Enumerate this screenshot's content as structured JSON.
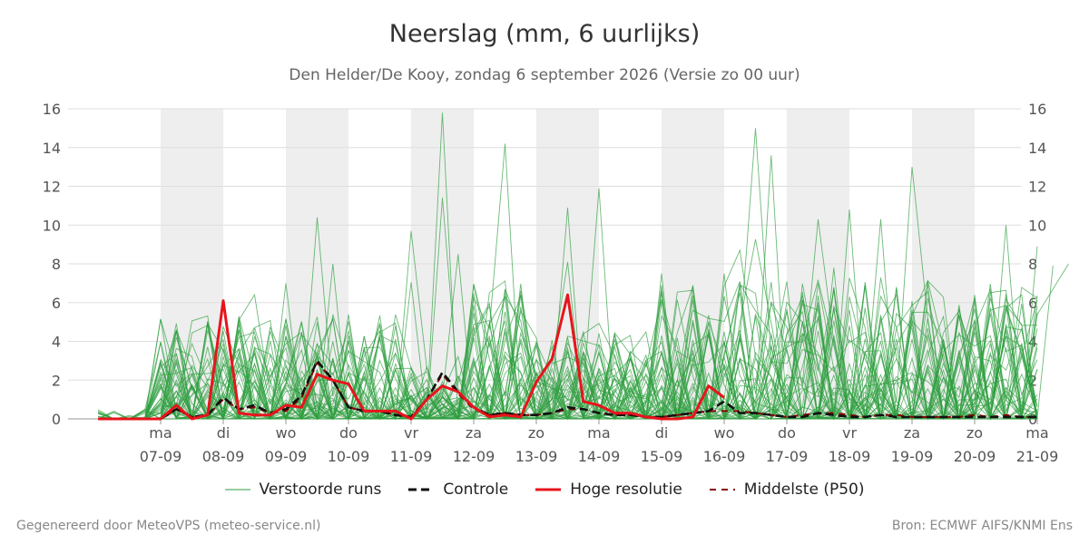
{
  "title": "Neerslag (mm, 6 uurlijks)",
  "subtitle": "Den Helder/De Kooy, zondag  6 september 2026 (Versie zo 00 uur)",
  "footer": {
    "left": "Gegenereerd door MeteoVPS (meteo-service.nl)",
    "right": "Bron: ECMWF AIFS/KNMI Ens"
  },
  "colors": {
    "ensemble": "#2e9e3e",
    "control": "#111111",
    "hires": "#e8141c",
    "median": "#8b0000",
    "weekend_band": "#eeeeee",
    "grid": "#dddddd"
  },
  "legend": [
    {
      "key": "ensemble",
      "label": "Verstoorde runs",
      "style": "thin-solid"
    },
    {
      "key": "control",
      "label": "Controle",
      "style": "dashed"
    },
    {
      "key": "hires",
      "label": "Hoge resolutie",
      "style": "thick-solid"
    },
    {
      "key": "median",
      "label": "Middelste (P50)",
      "style": "dashed"
    }
  ],
  "chart_data": {
    "type": "line",
    "x_unit": "date",
    "ylim": [
      0,
      16
    ],
    "yticks": [
      0,
      2,
      4,
      6,
      8,
      10,
      12,
      14,
      16
    ],
    "grid": true,
    "legend_position": "bottom",
    "x_ticks": [
      {
        "day": "ma",
        "date": "07-09"
      },
      {
        "day": "di",
        "date": "08-09"
      },
      {
        "day": "wo",
        "date": "09-09"
      },
      {
        "day": "do",
        "date": "10-09"
      },
      {
        "day": "vr",
        "date": "11-09"
      },
      {
        "day": "za",
        "date": "12-09"
      },
      {
        "day": "zo",
        "date": "13-09"
      },
      {
        "day": "ma",
        "date": "14-09"
      },
      {
        "day": "di",
        "date": "15-09"
      },
      {
        "day": "wo",
        "date": "16-09"
      },
      {
        "day": "do",
        "date": "17-09"
      },
      {
        "day": "vr",
        "date": "18-09"
      },
      {
        "day": "za",
        "date": "19-09"
      },
      {
        "day": "zo",
        "date": "20-09"
      },
      {
        "day": "ma",
        "date": "21-09"
      }
    ],
    "shaded_days": [
      "07-09",
      "09-09",
      "11-09",
      "13-09",
      "15-09",
      "17-09",
      "19-09"
    ],
    "hires": {
      "name": "Hoge resolutie",
      "points": [
        [
          "06-09 00:00",
          0.0
        ],
        [
          "06-09 06:00",
          0.0
        ],
        [
          "06-09 12:00",
          0.0
        ],
        [
          "06-09 18:00",
          0.0
        ],
        [
          "07-09 00:00",
          0.0
        ],
        [
          "07-09 06:00",
          0.7
        ],
        [
          "07-09 12:00",
          0.0
        ],
        [
          "07-09 18:00",
          0.2
        ],
        [
          "08-09 00:00",
          6.1
        ],
        [
          "08-09 06:00",
          0.3
        ],
        [
          "08-09 12:00",
          0.2
        ],
        [
          "08-09 18:00",
          0.2
        ],
        [
          "09-09 00:00",
          0.7
        ],
        [
          "09-09 06:00",
          0.6
        ],
        [
          "09-09 12:00",
          2.3
        ],
        [
          "09-09 18:00",
          2.0
        ],
        [
          "10-09 00:00",
          1.8
        ],
        [
          "10-09 06:00",
          0.4
        ],
        [
          "10-09 12:00",
          0.4
        ],
        [
          "10-09 18:00",
          0.4
        ],
        [
          "11-09 00:00",
          0.0
        ],
        [
          "11-09 06:00",
          1.0
        ],
        [
          "11-09 12:00",
          1.7
        ],
        [
          "11-09 18:00",
          1.4
        ],
        [
          "12-09 00:00",
          0.6
        ],
        [
          "12-09 06:00",
          0.1
        ],
        [
          "12-09 12:00",
          0.2
        ],
        [
          "12-09 18:00",
          0.1
        ],
        [
          "13-09 00:00",
          1.9
        ],
        [
          "13-09 06:00",
          3.1
        ],
        [
          "13-09 12:00",
          6.4
        ],
        [
          "13-09 18:00",
          0.9
        ],
        [
          "14-09 00:00",
          0.7
        ],
        [
          "14-09 06:00",
          0.3
        ],
        [
          "14-09 12:00",
          0.3
        ],
        [
          "14-09 18:00",
          0.1
        ],
        [
          "15-09 00:00",
          0.0
        ],
        [
          "15-09 06:00",
          0.0
        ],
        [
          "15-09 12:00",
          0.1
        ],
        [
          "15-09 18:00",
          1.7
        ],
        [
          "16-09 00:00",
          1.1
        ]
      ]
    },
    "control": {
      "name": "Controle",
      "points": [
        [
          "06-09 00:00",
          0.0
        ],
        [
          "06-09 06:00",
          0.0
        ],
        [
          "06-09 12:00",
          0.0
        ],
        [
          "06-09 18:00",
          0.0
        ],
        [
          "07-09 00:00",
          0.0
        ],
        [
          "07-09 06:00",
          0.5
        ],
        [
          "07-09 12:00",
          0.1
        ],
        [
          "07-09 18:00",
          0.2
        ],
        [
          "08-09 00:00",
          1.1
        ],
        [
          "08-09 06:00",
          0.5
        ],
        [
          "08-09 12:00",
          0.7
        ],
        [
          "08-09 18:00",
          0.3
        ],
        [
          "09-09 00:00",
          0.5
        ],
        [
          "09-09 06:00",
          1.2
        ],
        [
          "09-09 12:00",
          3.0
        ],
        [
          "09-09 18:00",
          2.0
        ],
        [
          "10-09 00:00",
          0.6
        ],
        [
          "10-09 06:00",
          0.4
        ],
        [
          "10-09 12:00",
          0.4
        ],
        [
          "10-09 18:00",
          0.2
        ],
        [
          "11-09 00:00",
          0.1
        ],
        [
          "11-09 06:00",
          1.0
        ],
        [
          "11-09 12:00",
          2.4
        ],
        [
          "11-09 18:00",
          1.4
        ],
        [
          "12-09 00:00",
          0.6
        ],
        [
          "12-09 06:00",
          0.2
        ],
        [
          "12-09 12:00",
          0.3
        ],
        [
          "12-09 18:00",
          0.2
        ],
        [
          "13-09 00:00",
          0.2
        ],
        [
          "13-09 06:00",
          0.3
        ],
        [
          "13-09 12:00",
          0.6
        ],
        [
          "13-09 18:00",
          0.5
        ],
        [
          "14-09 00:00",
          0.3
        ],
        [
          "14-09 06:00",
          0.2
        ],
        [
          "14-09 12:00",
          0.2
        ],
        [
          "14-09 18:00",
          0.1
        ],
        [
          "15-09 00:00",
          0.1
        ],
        [
          "15-09 06:00",
          0.2
        ],
        [
          "15-09 12:00",
          0.3
        ],
        [
          "15-09 18:00",
          0.4
        ],
        [
          "16-09 00:00",
          0.9
        ],
        [
          "16-09 06:00",
          0.3
        ],
        [
          "16-09 12:00",
          0.3
        ],
        [
          "16-09 18:00",
          0.2
        ],
        [
          "17-09 00:00",
          0.1
        ],
        [
          "17-09 06:00",
          0.1
        ],
        [
          "17-09 12:00",
          0.3
        ],
        [
          "17-09 18:00",
          0.2
        ],
        [
          "18-09 00:00",
          0.1
        ],
        [
          "18-09 06:00",
          0.1
        ],
        [
          "18-09 12:00",
          0.2
        ],
        [
          "18-09 18:00",
          0.1
        ],
        [
          "19-09 00:00",
          0.1
        ],
        [
          "19-09 06:00",
          0.1
        ],
        [
          "19-09 12:00",
          0.1
        ],
        [
          "19-09 18:00",
          0.1
        ],
        [
          "20-09 00:00",
          0.1
        ],
        [
          "20-09 06:00",
          0.1
        ],
        [
          "20-09 12:00",
          0.1
        ],
        [
          "20-09 18:00",
          0.1
        ],
        [
          "21-09 00:00",
          0.1
        ]
      ]
    },
    "median": {
      "name": "Middelste (P50)",
      "points": [
        [
          "06-09 00:00",
          0.0
        ],
        [
          "06-09 06:00",
          0.0
        ],
        [
          "06-09 12:00",
          0.0
        ],
        [
          "06-09 18:00",
          0.0
        ],
        [
          "07-09 00:00",
          0.0
        ],
        [
          "07-09 06:00",
          0.5
        ],
        [
          "07-09 12:00",
          0.1
        ],
        [
          "07-09 18:00",
          0.2
        ],
        [
          "08-09 00:00",
          1.0
        ],
        [
          "08-09 06:00",
          0.5
        ],
        [
          "08-09 12:00",
          0.6
        ],
        [
          "08-09 18:00",
          0.3
        ],
        [
          "09-09 00:00",
          0.4
        ],
        [
          "09-09 06:00",
          1.1
        ],
        [
          "09-09 12:00",
          2.9
        ],
        [
          "09-09 18:00",
          2.0
        ],
        [
          "10-09 00:00",
          0.6
        ],
        [
          "10-09 06:00",
          0.4
        ],
        [
          "10-09 12:00",
          0.4
        ],
        [
          "10-09 18:00",
          0.2
        ],
        [
          "11-09 00:00",
          0.1
        ],
        [
          "11-09 06:00",
          1.0
        ],
        [
          "11-09 12:00",
          2.3
        ],
        [
          "11-09 18:00",
          1.3
        ],
        [
          "12-09 00:00",
          0.5
        ],
        [
          "12-09 06:00",
          0.2
        ],
        [
          "12-09 12:00",
          0.3
        ],
        [
          "12-09 18:00",
          0.2
        ],
        [
          "13-09 00:00",
          0.2
        ],
        [
          "13-09 06:00",
          0.3
        ],
        [
          "13-09 12:00",
          0.5
        ],
        [
          "13-09 18:00",
          0.5
        ],
        [
          "14-09 00:00",
          0.3
        ],
        [
          "14-09 06:00",
          0.2
        ],
        [
          "14-09 12:00",
          0.2
        ],
        [
          "14-09 18:00",
          0.1
        ],
        [
          "15-09 00:00",
          0.1
        ],
        [
          "15-09 06:00",
          0.2
        ],
        [
          "15-09 12:00",
          0.3
        ],
        [
          "15-09 18:00",
          0.4
        ],
        [
          "16-09 00:00",
          0.4
        ],
        [
          "16-09 06:00",
          0.4
        ],
        [
          "16-09 12:00",
          0.3
        ],
        [
          "16-09 18:00",
          0.2
        ],
        [
          "17-09 00:00",
          0.1
        ],
        [
          "17-09 06:00",
          0.2
        ],
        [
          "17-09 12:00",
          0.3
        ],
        [
          "17-09 18:00",
          0.3
        ],
        [
          "18-09 00:00",
          0.2
        ],
        [
          "18-09 06:00",
          0.1
        ],
        [
          "18-09 12:00",
          0.2
        ],
        [
          "18-09 18:00",
          0.2
        ],
        [
          "19-09 00:00",
          0.1
        ],
        [
          "19-09 06:00",
          0.1
        ],
        [
          "19-09 12:00",
          0.1
        ],
        [
          "19-09 18:00",
          0.1
        ],
        [
          "20-09 00:00",
          0.2
        ],
        [
          "20-09 06:00",
          0.1
        ],
        [
          "20-09 12:00",
          0.2
        ],
        [
          "20-09 18:00",
          0.1
        ],
        [
          "21-09 00:00",
          0.1
        ]
      ]
    },
    "ensemble": {
      "name": "Verstoorde runs",
      "start": "06-09 00:00",
      "step_hours": 6,
      "member_count": 50,
      "peak_values": [
        {
          "time": "07-09 06:00",
          "value": 4.6
        },
        {
          "time": "08-09 00:00",
          "value": 3.2
        },
        {
          "time": "08-09 12:00",
          "value": 6.4
        },
        {
          "time": "09-09 00:00",
          "value": 7.0
        },
        {
          "time": "09-09 12:00",
          "value": 10.4
        },
        {
          "time": "09-09 18:00",
          "value": 8.0
        },
        {
          "time": "11-09 00:00",
          "value": 9.7
        },
        {
          "time": "11-09 12:00",
          "value": 15.8
        },
        {
          "time": "11-09 18:00",
          "value": 8.5
        },
        {
          "time": "12-09 12:00",
          "value": 14.2
        },
        {
          "time": "13-09 12:00",
          "value": 10.9
        },
        {
          "time": "14-09 00:00",
          "value": 11.9
        },
        {
          "time": "15-09 00:00",
          "value": 7.5
        },
        {
          "time": "16-09 00:00",
          "value": 7.5
        },
        {
          "time": "16-09 06:00",
          "value": 8.7
        },
        {
          "time": "16-09 12:00",
          "value": 15.0
        },
        {
          "time": "16-09 18:00",
          "value": 13.6
        },
        {
          "time": "17-09 12:00",
          "value": 10.3
        },
        {
          "time": "17-09 18:00",
          "value": 7.8
        },
        {
          "time": "18-09 00:00",
          "value": 10.8
        },
        {
          "time": "18-09 12:00",
          "value": 10.3
        },
        {
          "time": "18-09 18:00",
          "value": 6.8
        },
        {
          "time": "19-09 00:00",
          "value": 13.0
        },
        {
          "time": "19-09 18:00",
          "value": 5.3
        },
        {
          "time": "20-09 12:00",
          "value": 10.0
        },
        {
          "time": "20-09 18:00",
          "value": 6.4
        },
        {
          "time": "21-09 00:00",
          "value": 8.9
        },
        {
          "time": "21-09 06:00",
          "value": 7.9
        },
        {
          "time": "21-09 12:00",
          "value": 8.0
        }
      ]
    }
  }
}
